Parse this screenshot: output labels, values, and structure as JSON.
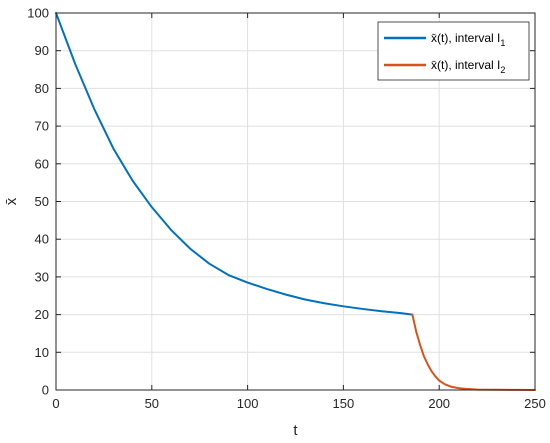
{
  "chart_data": {
    "type": "line",
    "title": "",
    "xlabel": "t",
    "ylabel": "x̄",
    "xlim": [
      0,
      250
    ],
    "ylim": [
      0,
      100
    ],
    "xticks": [
      0,
      50,
      100,
      150,
      200,
      250
    ],
    "yticks": [
      0,
      10,
      20,
      30,
      40,
      50,
      60,
      70,
      80,
      90,
      100
    ],
    "xtick_labels": [
      "0",
      "50",
      "100",
      "150",
      "200",
      "250"
    ],
    "ytick_labels": [
      "0",
      "10",
      "20",
      "30",
      "40",
      "50",
      "60",
      "70",
      "80",
      "90",
      "100"
    ],
    "grid": true,
    "legend_position": "top-right",
    "series": [
      {
        "name": "x̄(t), interval I1",
        "legend_main": "x̄(t), interval I",
        "legend_sub": "1",
        "color": "#0072BD",
        "x": [
          0,
          10,
          20,
          30,
          40,
          50,
          60,
          70,
          80,
          90,
          100,
          110,
          120,
          130,
          140,
          150,
          160,
          170,
          180,
          186
        ],
        "y": [
          100,
          86.5,
          74.5,
          64,
          55.5,
          48.5,
          42.5,
          37.5,
          33.5,
          30.5,
          28.5,
          26.8,
          25.3,
          24,
          23,
          22.2,
          21.5,
          20.9,
          20.4,
          20
        ]
      },
      {
        "name": "x̄(t), interval I2",
        "legend_main": "x̄(t), interval I",
        "legend_sub": "2",
        "color": "#D95319",
        "x": [
          186,
          188,
          190,
          192,
          194,
          196,
          198,
          200,
          203,
          206,
          210,
          215,
          220,
          230,
          240,
          250
        ],
        "y": [
          20,
          15.5,
          12,
          9,
          6.8,
          5,
          3.6,
          2.5,
          1.5,
          0.9,
          0.5,
          0.25,
          0.1,
          0.05,
          0.02,
          0
        ]
      }
    ]
  }
}
